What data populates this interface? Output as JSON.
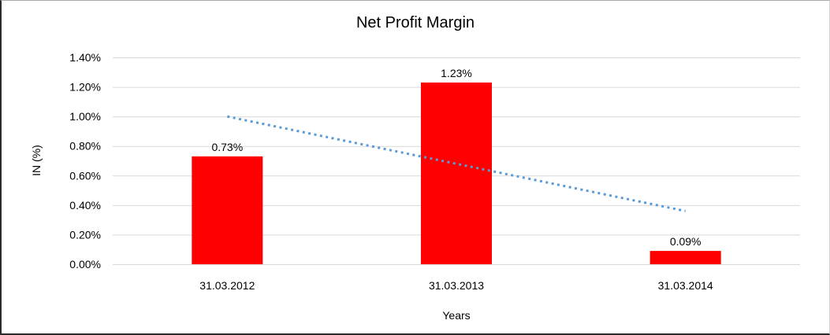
{
  "chart_data": {
    "type": "bar",
    "title": "Net Profit Margin",
    "xlabel": "Years",
    "ylabel": "IN (%)",
    "categories": [
      "31.03.2012",
      "31.03.2013",
      "31.03.2014"
    ],
    "values": [
      0.73,
      1.23,
      0.09
    ],
    "data_labels": [
      "0.73%",
      "1.23%",
      "0.09%"
    ],
    "ylim": [
      0,
      1.4
    ],
    "yticks": [
      0,
      0.2,
      0.4,
      0.6,
      0.8,
      1.0,
      1.2,
      1.4
    ],
    "ytick_labels": [
      "0.00%",
      "0.20%",
      "0.40%",
      "0.60%",
      "0.80%",
      "1.00%",
      "1.20%",
      "1.40%"
    ],
    "grid": true,
    "legend": "none",
    "bar_color": "#FF0000",
    "gridline_color": "#D9D9D9",
    "text_color": "#000000",
    "trendline": {
      "type": "linear",
      "style": "dotted",
      "color": "#5B9BD5",
      "start_value": 1.0,
      "end_value": 0.36
    }
  }
}
